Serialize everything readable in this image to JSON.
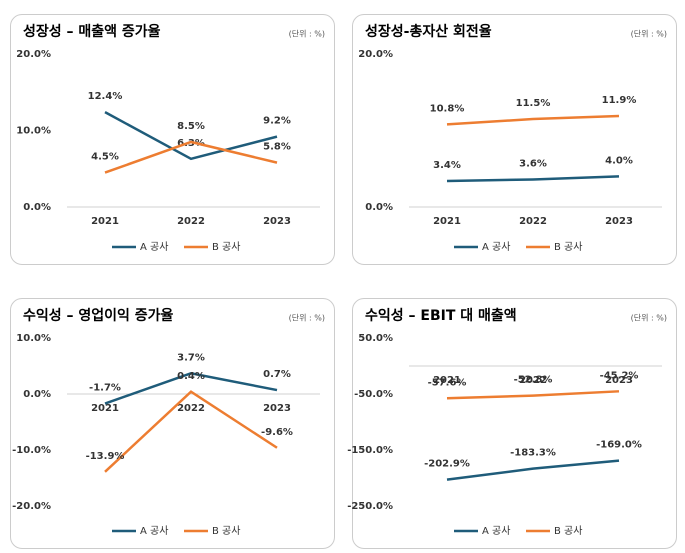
{
  "chart_data": [
    {
      "type": "line",
      "title": "성장성 – 매출액 증가율",
      "subtitle": "(단위 : %)",
      "categories": [
        "2021",
        "2022",
        "2023"
      ],
      "series": [
        {
          "name": "A 공사",
          "color": "#1f5c7a",
          "values": [
            12.4,
            6.3,
            9.2
          ],
          "value_labels": [
            "12.4%",
            "6.3%",
            "9.2%"
          ]
        },
        {
          "name": "B 공사",
          "color": "#ed7d31",
          "values": [
            4.5,
            8.5,
            5.8
          ],
          "value_labels": [
            "4.5%",
            "8.5%",
            "5.8%"
          ]
        }
      ],
      "ylim": [
        0,
        20
      ],
      "yticks": [
        {
          "value": 0,
          "label": "0.0%"
        },
        {
          "value": 10,
          "label": "10.0%"
        },
        {
          "value": 20,
          "label": "20.0%"
        }
      ],
      "legend": "bottom"
    },
    {
      "type": "line",
      "title": "성장성-총자산 회전율",
      "subtitle": "(단위 : %)",
      "categories": [
        "2021",
        "2022",
        "2023"
      ],
      "series": [
        {
          "name": "A 공사",
          "color": "#1f5c7a",
          "values": [
            3.4,
            3.6,
            4.0
          ],
          "value_labels": [
            "3.4%",
            "3.6%",
            "4.0%"
          ]
        },
        {
          "name": "B 공사",
          "color": "#ed7d31",
          "values": [
            10.8,
            11.5,
            11.9
          ],
          "value_labels": [
            "10.8%",
            "11.5%",
            "11.9%"
          ]
        }
      ],
      "ylim": [
        0,
        20
      ],
      "yticks": [
        {
          "value": 0,
          "label": "0.0%"
        },
        {
          "value": 20,
          "label": "20.0%"
        }
      ],
      "legend": "bottom"
    },
    {
      "type": "line",
      "title": "수익성 – 영업이익 증가율",
      "subtitle": "(단위 : %)",
      "categories": [
        "2021",
        "2022",
        "2023"
      ],
      "series": [
        {
          "name": "A 공사",
          "color": "#1f5c7a",
          "values": [
            -1.7,
            3.7,
            0.7
          ],
          "value_labels": [
            "-1.7%",
            "3.7%",
            "0.7%"
          ]
        },
        {
          "name": "B 공사",
          "color": "#ed7d31",
          "values": [
            -13.9,
            0.4,
            -9.6
          ],
          "value_labels": [
            "-13.9%",
            "0.4%",
            "-9.6%"
          ]
        }
      ],
      "ylim": [
        -20,
        10
      ],
      "yticks": [
        {
          "value": -20,
          "label": "-20.0%"
        },
        {
          "value": -10,
          "label": "-10.0%"
        },
        {
          "value": 0,
          "label": "0.0%"
        },
        {
          "value": 10,
          "label": "10.0%"
        }
      ],
      "legend": "bottom"
    },
    {
      "type": "line",
      "title": "수익성 – EBIT 대 매출액",
      "subtitle": "(단위 : %)",
      "categories": [
        "2021",
        "2022",
        "2023"
      ],
      "series": [
        {
          "name": "A 공사",
          "color": "#1f5c7a",
          "values": [
            -202.9,
            -183.3,
            -169.0
          ],
          "value_labels": [
            "-202.9%",
            "-183.3%",
            "-169.0%"
          ]
        },
        {
          "name": "B 공사",
          "color": "#ed7d31",
          "values": [
            -57.6,
            -52.8,
            -45.2
          ],
          "value_labels": [
            "-57.6%",
            "-52.8%",
            "-45.2%"
          ]
        }
      ],
      "ylim": [
        -250,
        50
      ],
      "yticks": [
        {
          "value": -250,
          "label": "-250.0%"
        },
        {
          "value": -150,
          "label": "-150.0%"
        },
        {
          "value": -50,
          "label": "-50.0%"
        },
        {
          "value": 50,
          "label": "50.0%"
        }
      ],
      "legend": "bottom"
    }
  ]
}
